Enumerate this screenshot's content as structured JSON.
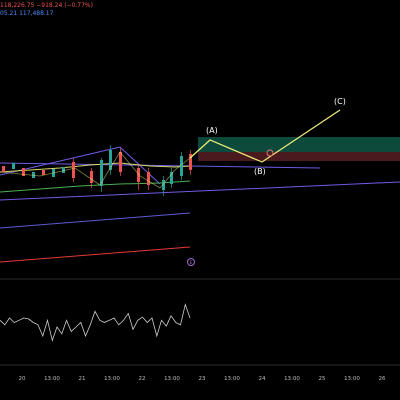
{
  "header": {
    "line1": "118,226.75 −918.24 (−0.77%)",
    "line2": "05.21 117,488.17"
  },
  "colors": {
    "background": "#000000",
    "bull_candle": "#26a69a",
    "bear_candle": "#ef5350",
    "wave": "#f0f07a",
    "upper_channel": "#6c5ce7",
    "ma_green": "#4caf50",
    "ma_red": "#e53935",
    "ma_blue": "#5b5bd6",
    "take_profit": "#0e4a3c",
    "stop_zone": "#4a1a1e"
  },
  "waves": {
    "a": "(A)",
    "b": "(B)",
    "c": "(C)"
  },
  "x_axis": {
    "ticks": [
      "20",
      "13:00",
      "21",
      "13:00",
      "22",
      "13:00",
      "23",
      "13:00",
      "24",
      "13:00",
      "25",
      "13:00",
      "26"
    ]
  },
  "event_marker": "E",
  "oscillator": {
    "values": [
      0.55,
      0.45,
      0.6,
      0.5,
      0.55,
      0.6,
      0.58,
      0.5,
      0.45,
      0.2,
      0.55,
      0.1,
      0.4,
      0.25,
      0.55,
      0.3,
      0.4,
      0.5,
      0.2,
      0.45,
      0.75,
      0.55,
      0.5,
      0.55,
      0.6,
      0.45,
      0.55,
      0.7,
      0.35,
      0.55,
      0.62,
      0.5,
      0.6,
      0.2,
      0.55,
      0.42,
      0.65,
      0.5,
      0.45,
      0.9,
      0.6
    ]
  }
}
